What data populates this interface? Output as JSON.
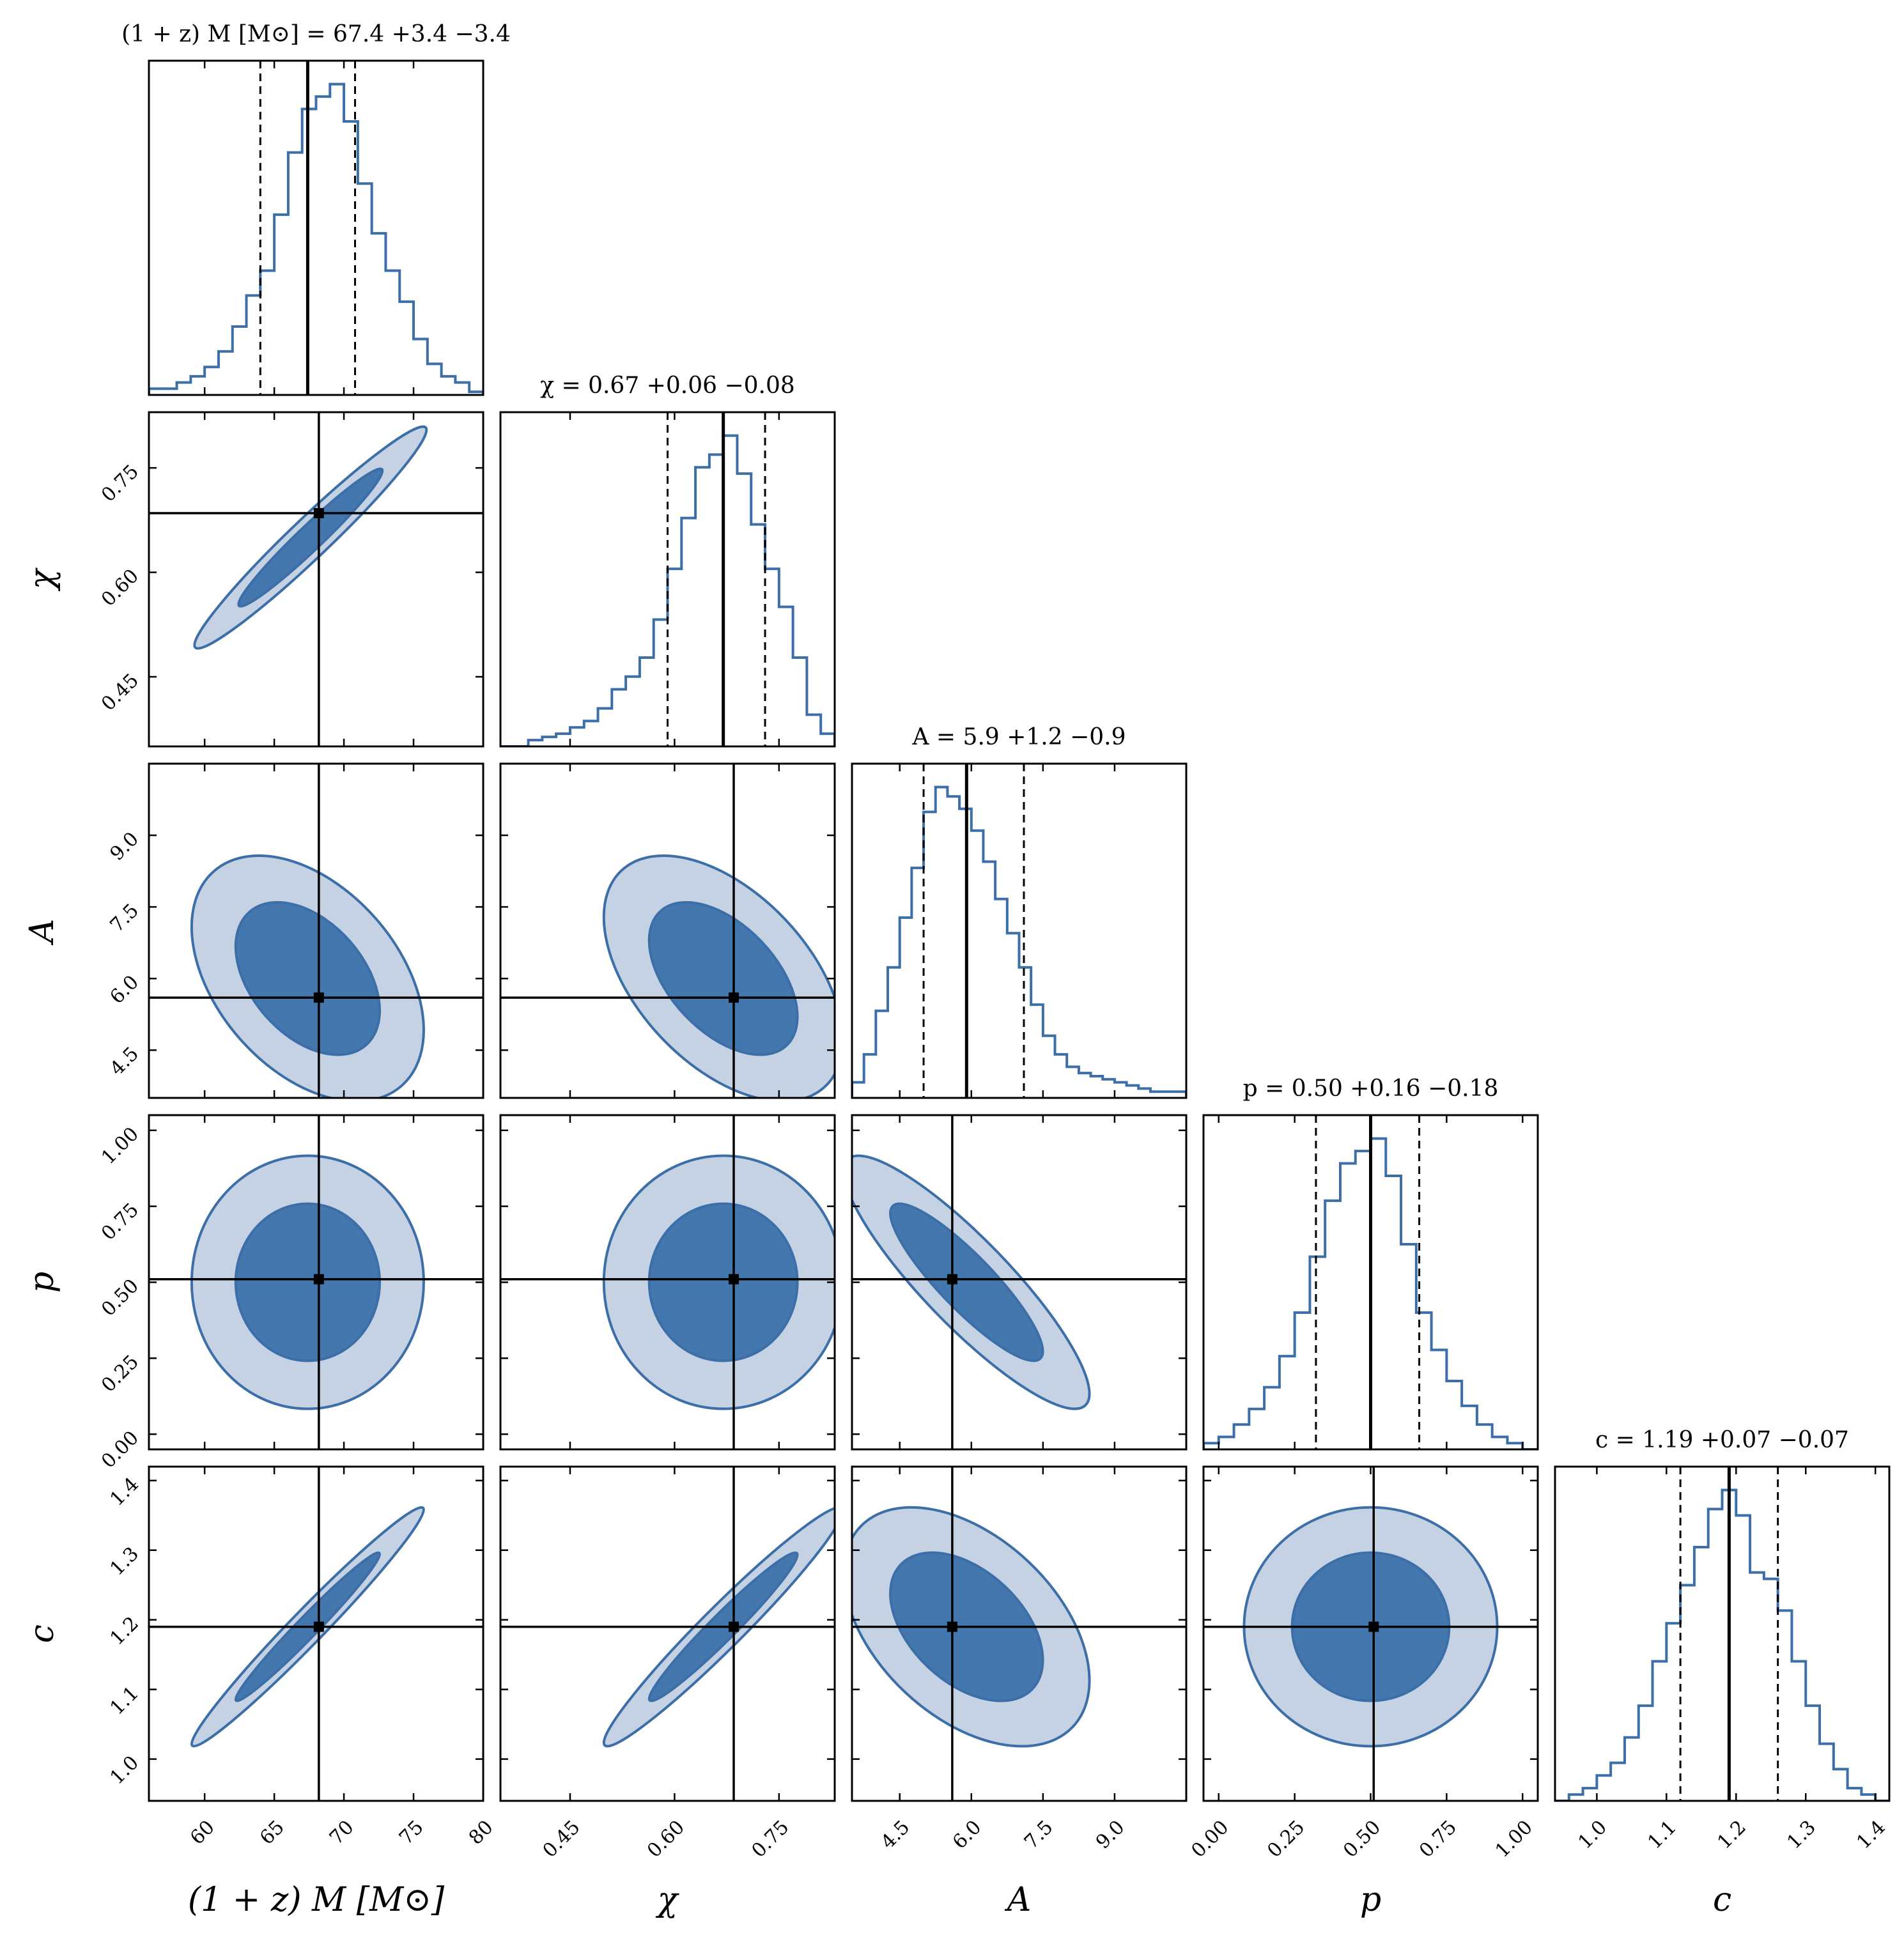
{
  "chart_data": {
    "type": "corner",
    "grid": false,
    "colors": {
      "outer": "#c4d2e4",
      "inner": "#4377ad",
      "line": "#3c6ea7",
      "truth": "#000000"
    },
    "parameters": [
      {
        "key": "M",
        "label": "(1 + z) M [M⊙]",
        "title": "(1 + z) M [M⊙] = 67.4 +3.4 −3.4",
        "range": [
          56,
          80
        ],
        "ticks": [
          "60",
          "65",
          "70",
          "75",
          "80"
        ],
        "tick_values": [
          60,
          65,
          70,
          75,
          80
        ],
        "median": 67.4,
        "err_plus": 3.4,
        "err_minus": 3.4,
        "truth": 68.2,
        "hist_x": [
          56,
          57,
          58,
          59,
          60,
          61,
          62,
          63,
          64,
          65,
          66,
          67,
          68,
          69,
          70,
          71,
          72,
          73,
          74,
          75,
          76,
          77,
          78,
          79
        ],
        "hist_y": [
          0.02,
          0.02,
          0.04,
          0.06,
          0.09,
          0.14,
          0.22,
          0.32,
          0.4,
          0.58,
          0.78,
          0.92,
          0.96,
          1.0,
          0.88,
          0.68,
          0.52,
          0.4,
          0.3,
          0.18,
          0.1,
          0.06,
          0.04,
          0.01
        ]
      },
      {
        "key": "chi",
        "label": "χ",
        "title": "χ = 0.67 +0.06 −0.08",
        "range": [
          0.35,
          0.83
        ],
        "ticks": [
          "0.45",
          "0.60",
          "0.75"
        ],
        "tick_values": [
          0.45,
          0.6,
          0.75
        ],
        "median": 0.67,
        "err_plus": 0.06,
        "err_minus": 0.08,
        "truth": 0.685,
        "hist_x": [
          0.35,
          0.37,
          0.39,
          0.41,
          0.43,
          0.45,
          0.47,
          0.49,
          0.51,
          0.53,
          0.55,
          0.57,
          0.59,
          0.61,
          0.63,
          0.65,
          0.67,
          0.69,
          0.71,
          0.73,
          0.75,
          0.77,
          0.79,
          0.81
        ],
        "hist_y": [
          0.0,
          0.0,
          0.02,
          0.03,
          0.04,
          0.06,
          0.08,
          0.12,
          0.18,
          0.22,
          0.28,
          0.4,
          0.56,
          0.72,
          0.88,
          0.92,
          0.98,
          0.86,
          0.7,
          0.56,
          0.44,
          0.28,
          0.1,
          0.04
        ]
      },
      {
        "key": "A",
        "label": "A",
        "title": "A = 5.9 +1.2 −0.9",
        "range": [
          3.5,
          10.5
        ],
        "ticks": [
          "4.5",
          "6.0",
          "7.5",
          "9.0"
        ],
        "tick_values": [
          4.5,
          6.0,
          7.5,
          9.0
        ],
        "median": 5.9,
        "err_plus": 1.2,
        "err_minus": 0.9,
        "truth": 5.6,
        "hist_x": [
          3.5,
          3.75,
          4.0,
          4.25,
          4.5,
          4.75,
          5.0,
          5.25,
          5.5,
          5.75,
          6.0,
          6.25,
          6.5,
          6.75,
          7.0,
          7.25,
          7.5,
          7.75,
          8.0,
          8.25,
          8.5,
          8.75,
          9.0,
          9.25,
          9.5,
          9.75,
          10.0,
          10.25
        ],
        "hist_y": [
          0.05,
          0.14,
          0.28,
          0.42,
          0.58,
          0.74,
          0.92,
          1.0,
          0.97,
          0.93,
          0.86,
          0.76,
          0.64,
          0.53,
          0.42,
          0.3,
          0.2,
          0.14,
          0.1,
          0.08,
          0.07,
          0.06,
          0.05,
          0.04,
          0.03,
          0.02,
          0.02,
          0.02
        ]
      },
      {
        "key": "p",
        "label": "p",
        "title": "p = 0.50 +0.16 −0.18",
        "range": [
          -0.05,
          1.05
        ],
        "ticks": [
          "0.00",
          "0.25",
          "0.50",
          "0.75",
          "1.00"
        ],
        "tick_values": [
          0.0,
          0.25,
          0.5,
          0.75,
          1.0
        ],
        "median": 0.5,
        "err_plus": 0.16,
        "err_minus": 0.18,
        "truth": 0.51,
        "hist_x": [
          -0.05,
          0.0,
          0.05,
          0.1,
          0.15,
          0.2,
          0.25,
          0.3,
          0.35,
          0.4,
          0.45,
          0.5,
          0.55,
          0.6,
          0.65,
          0.7,
          0.75,
          0.8,
          0.85,
          0.9,
          0.95,
          1.0
        ],
        "hist_y": [
          0.02,
          0.04,
          0.08,
          0.13,
          0.2,
          0.3,
          0.44,
          0.62,
          0.8,
          0.92,
          0.96,
          1.0,
          0.88,
          0.66,
          0.44,
          0.32,
          0.22,
          0.14,
          0.08,
          0.04,
          0.02,
          0.0
        ]
      },
      {
        "key": "c",
        "label": "c",
        "title": "c = 1.19 +0.07 −0.07",
        "range": [
          0.94,
          1.42
        ],
        "ticks": [
          "1.0",
          "1.1",
          "1.2",
          "1.3",
          "1.4"
        ],
        "tick_values": [
          1.0,
          1.1,
          1.2,
          1.3,
          1.4
        ],
        "median": 1.19,
        "err_plus": 0.07,
        "err_minus": 0.07,
        "truth": 1.19,
        "hist_x": [
          0.94,
          0.96,
          0.98,
          1.0,
          1.02,
          1.04,
          1.06,
          1.08,
          1.1,
          1.12,
          1.14,
          1.16,
          1.18,
          1.2,
          1.22,
          1.24,
          1.26,
          1.28,
          1.3,
          1.32,
          1.34,
          1.36,
          1.38,
          1.4
        ],
        "hist_y": [
          0.0,
          0.02,
          0.04,
          0.08,
          0.12,
          0.2,
          0.3,
          0.44,
          0.56,
          0.68,
          0.8,
          0.92,
          0.98,
          0.9,
          0.72,
          0.7,
          0.6,
          0.44,
          0.3,
          0.18,
          0.1,
          0.04,
          0.02,
          0.0
        ]
      }
    ],
    "pairs": [
      {
        "row": 1,
        "col": 0,
        "center": [
          67.6,
          0.65
        ],
        "sigma": [
          3.4,
          0.065
        ],
        "rho": 0.97
      },
      {
        "row": 2,
        "col": 0,
        "center": [
          67.4,
          6.0
        ],
        "sigma": [
          3.4,
          1.05
        ],
        "rho": -0.42
      },
      {
        "row": 2,
        "col": 1,
        "center": [
          0.67,
          6.0
        ],
        "sigma": [
          0.07,
          1.05
        ],
        "rho": -0.5
      },
      {
        "row": 3,
        "col": 0,
        "center": [
          67.4,
          0.5
        ],
        "sigma": [
          3.4,
          0.17
        ],
        "rho": 0.0
      },
      {
        "row": 3,
        "col": 1,
        "center": [
          0.67,
          0.5
        ],
        "sigma": [
          0.07,
          0.17
        ],
        "rho": 0.0
      },
      {
        "row": 3,
        "col": 2,
        "center": [
          5.9,
          0.5
        ],
        "sigma": [
          1.05,
          0.17
        ],
        "rho": -0.88
      },
      {
        "row": 4,
        "col": 0,
        "center": [
          67.4,
          1.19
        ],
        "sigma": [
          3.4,
          0.07
        ],
        "rho": 0.98
      },
      {
        "row": 4,
        "col": 1,
        "center": [
          0.67,
          1.19
        ],
        "sigma": [
          0.07,
          0.07
        ],
        "rho": 0.97
      },
      {
        "row": 4,
        "col": 2,
        "center": [
          5.9,
          1.19
        ],
        "sigma": [
          1.05,
          0.07
        ],
        "rho": -0.45
      },
      {
        "row": 4,
        "col": 3,
        "center": [
          0.5,
          1.19
        ],
        "sigma": [
          0.17,
          0.07
        ],
        "rho": 0.0
      }
    ],
    "contour_levels_sigma": [
      1.52,
      2.45
    ]
  }
}
